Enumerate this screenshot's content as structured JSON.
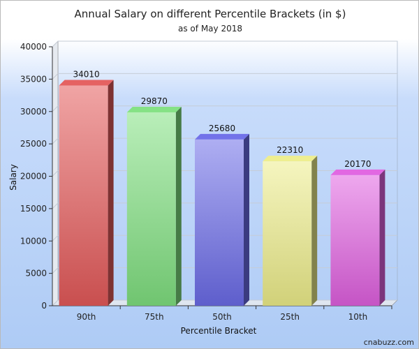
{
  "chart_data": {
    "type": "bar",
    "title": "Annual Salary on different Percentile Brackets (in $)",
    "subtitle": "as of May 2018",
    "xlabel": "Percentile Bracket",
    "ylabel": "Salary",
    "categories": [
      "90th",
      "75th",
      "50th",
      "25th",
      "10th"
    ],
    "values": [
      34010,
      29870,
      25680,
      22310,
      20170
    ],
    "ylim": [
      0,
      40000
    ],
    "yticks": [
      0,
      5000,
      10000,
      15000,
      20000,
      25000,
      30000,
      35000,
      40000
    ],
    "grid": true,
    "legend": "none",
    "three_d": true,
    "colors": [
      "#e45a5a",
      "#7fe07f",
      "#6b6be8",
      "#eded8a",
      "#e060e0"
    ]
  },
  "watermark": "cnabuzz.com"
}
